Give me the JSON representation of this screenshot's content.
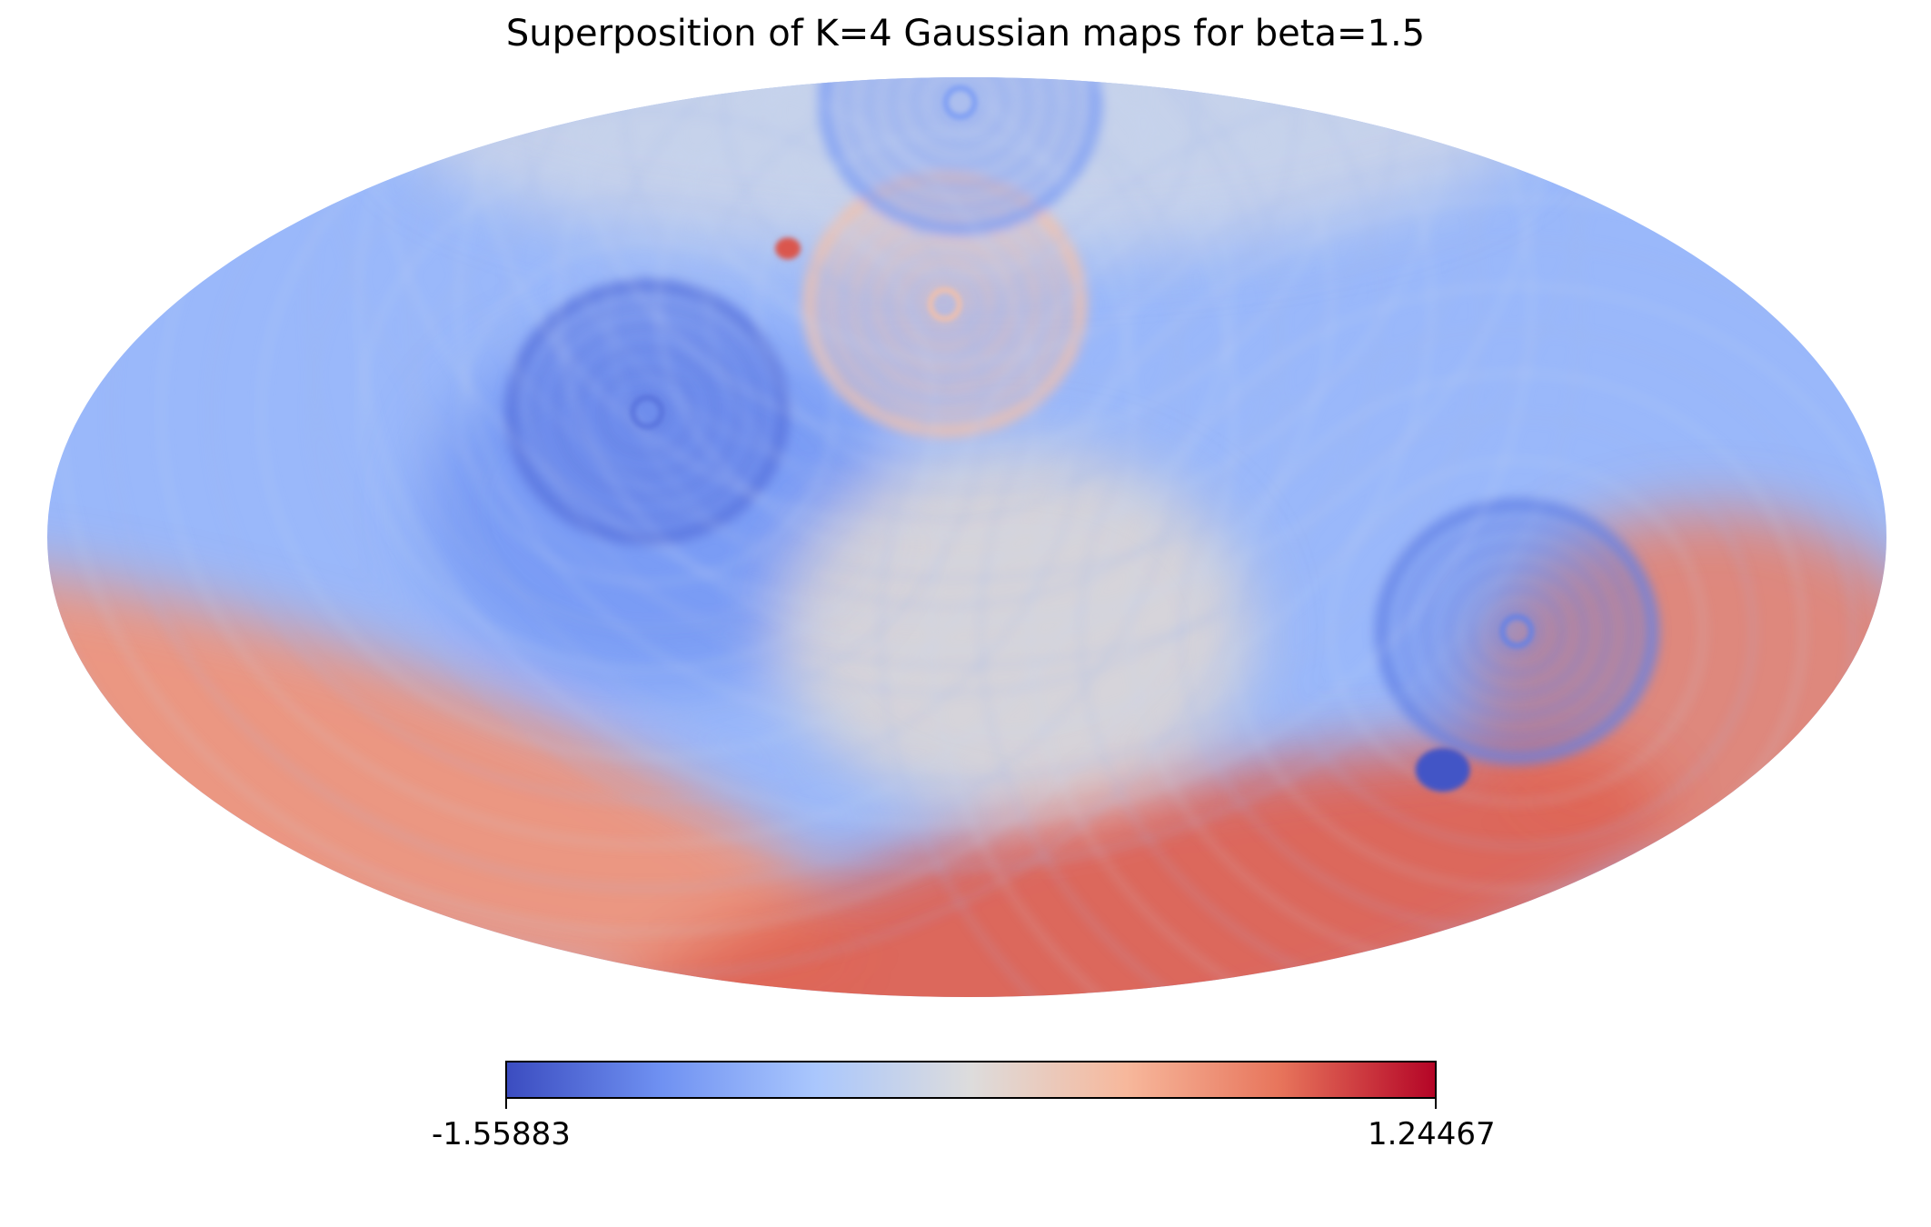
{
  "chart_data": {
    "type": "heatmap",
    "projection": "mollweide",
    "title": "Superposition of K=4 Gaussian maps for beta=1.5",
    "colormap": "coolwarm",
    "grid": false,
    "colorbar": {
      "orientation": "horizontal",
      "placement": "bottom",
      "min": -1.55883,
      "max": 1.24467,
      "min_label": "-1.55883",
      "max_label": "1.24467",
      "stops": [
        "#3b4cc0",
        "#6f91f2",
        "#aac7fd",
        "#dddcdc",
        "#f7b89c",
        "#e7745b",
        "#b40426"
      ]
    },
    "features": [
      {
        "kind": "background",
        "lon": 0,
        "lat": 0,
        "value": -0.75
      },
      {
        "kind": "region",
        "lon": -60,
        "lat": 5,
        "value": -1.05
      },
      {
        "kind": "ring",
        "lon": -65,
        "lat": 20,
        "value": -1.3
      },
      {
        "kind": "hotspot",
        "lon": -45,
        "lat": 48,
        "value": 0.9
      },
      {
        "kind": "ring",
        "lon": -5,
        "lat": 38,
        "value": 0.2
      },
      {
        "kind": "ring",
        "lon": -4,
        "lat": 80,
        "value": -1.0
      },
      {
        "kind": "ring",
        "lon": 110,
        "lat": -15,
        "value": -1.2
      },
      {
        "kind": "coldspot",
        "lon": 108,
        "lat": -38,
        "value": -1.5
      },
      {
        "kind": "region",
        "lon": 155,
        "lat": -25,
        "value": 0.7
      },
      {
        "kind": "region",
        "lon": 10,
        "lat": -15,
        "value": -0.1
      },
      {
        "kind": "band",
        "lon": -150,
        "lat": -40,
        "value": 0.55
      },
      {
        "kind": "band",
        "lon": 60,
        "lat": -70,
        "value": 0.85
      },
      {
        "kind": "band",
        "lon": 0,
        "lat": 75,
        "value": -0.35
      }
    ]
  }
}
